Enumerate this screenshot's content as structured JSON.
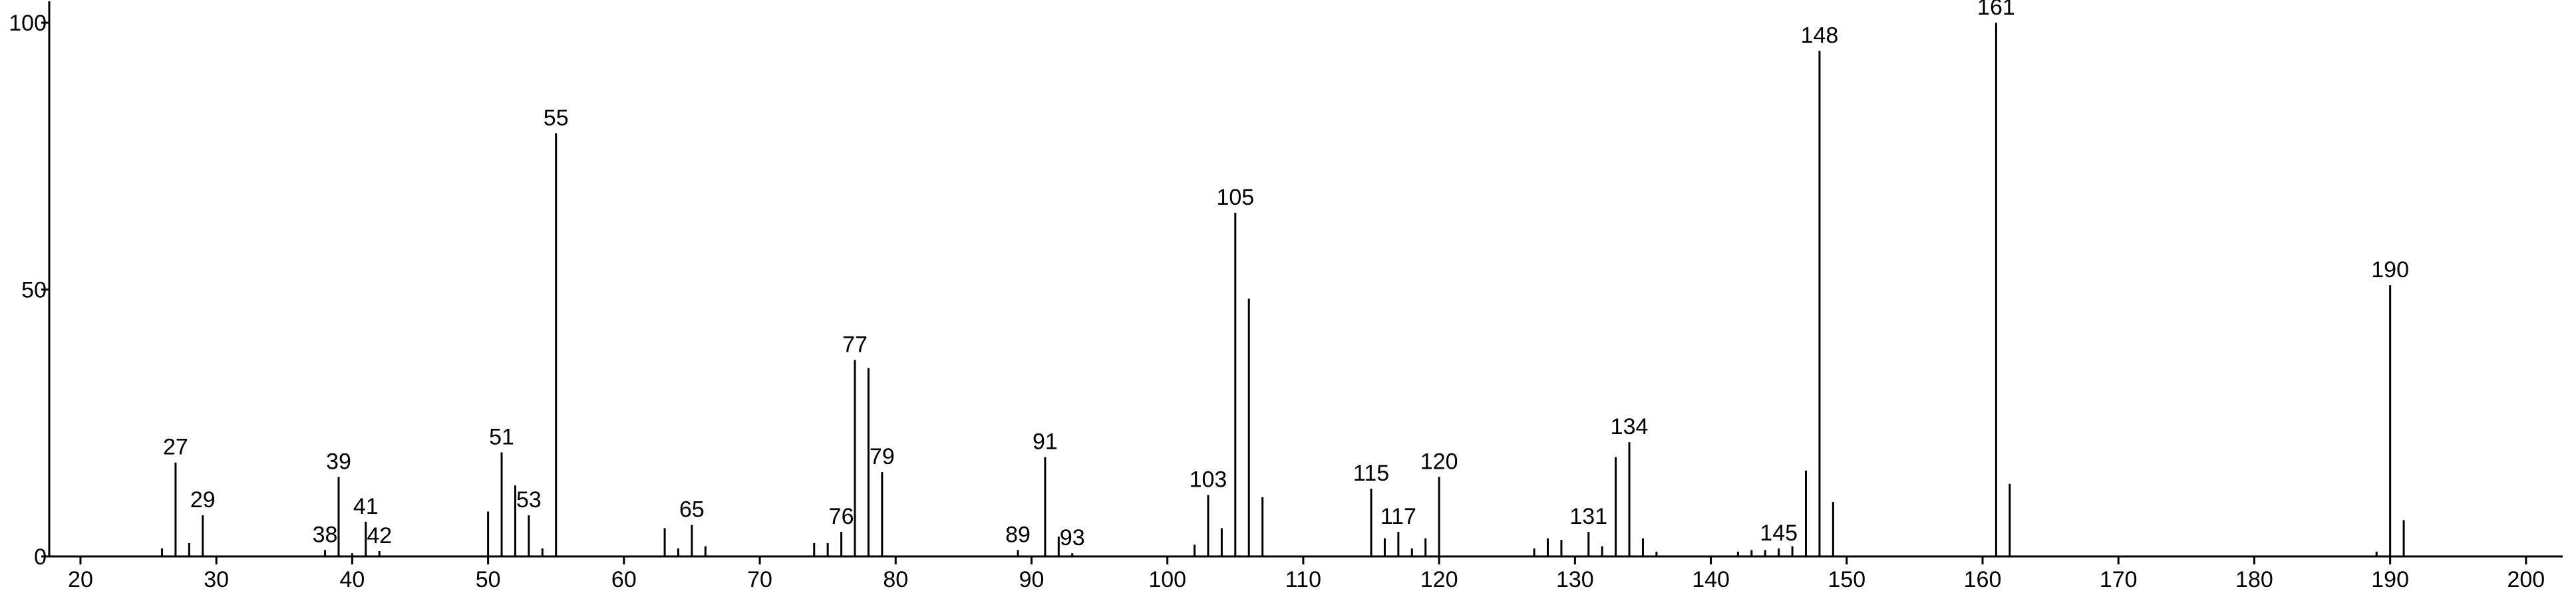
{
  "chart_data": {
    "type": "bar",
    "color": "#000000",
    "x": [
      26,
      27,
      28,
      29,
      38,
      39,
      40,
      41,
      42,
      50,
      51,
      52,
      53,
      54,
      55,
      63,
      64,
      65,
      66,
      74,
      75,
      76,
      77,
      78,
      79,
      89,
      91,
      92,
      93,
      102,
      103,
      104,
      105,
      106,
      107,
      115,
      116,
      117,
      118,
      119,
      120,
      127,
      128,
      129,
      131,
      132,
      133,
      134,
      135,
      136,
      142,
      143,
      144,
      145,
      146,
      147,
      148,
      149,
      161,
      162,
      189,
      190,
      191
    ],
    "values": [
      1.5,
      17.6,
      2.5,
      7.7,
      1.2,
      14.9,
      0.6,
      6.5,
      1,
      8.4,
      19.5,
      13.3,
      7.7,
      1.5,
      79.3,
      5.3,
      1.5,
      5.9,
      1.9,
      2.5,
      2.5,
      4.6,
      36.8,
      35.3,
      15.8,
      1.2,
      18.6,
      3.7,
      0.6,
      2.2,
      11.5,
      5.3,
      64.4,
      48.3,
      11.1,
      12.7,
      3.4,
      4.6,
      1.5,
      3.4,
      14.9,
      1.5,
      3.4,
      3.1,
      4.6,
      1.9,
      18.6,
      21.4,
      3.4,
      0.9,
      0.9,
      1.2,
      1.2,
      1.5,
      1.9,
      16.1,
      94.7,
      10.2,
      100,
      13.6,
      0.9,
      50.8,
      6.8
    ],
    "annotations": [
      27,
      29,
      38,
      39,
      41,
      42,
      51,
      53,
      55,
      65,
      76,
      77,
      79,
      89,
      91,
      93,
      103,
      105,
      115,
      117,
      120,
      131,
      134,
      145,
      148,
      161,
      190
    ],
    "xlim": [
      17.7,
      202.7
    ],
    "xticks": [
      20,
      30,
      40,
      50,
      60,
      70,
      80,
      90,
      100,
      110,
      120,
      130,
      140,
      150,
      160,
      170,
      180,
      190,
      200
    ],
    "ylim": [
      0,
      104
    ],
    "yticks": [
      0,
      50,
      100
    ]
  }
}
